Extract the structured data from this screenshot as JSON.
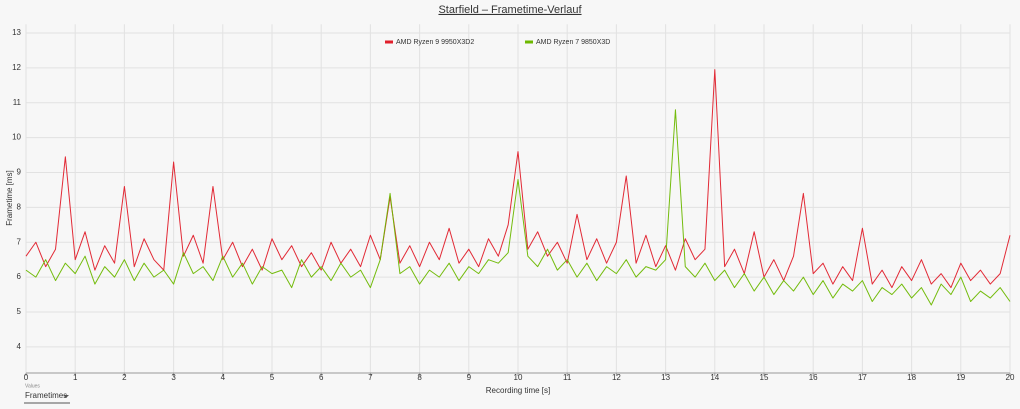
{
  "chart_data": {
    "type": "line",
    "title": "Starfield – Frametime-Verlauf",
    "x_label": "Recording time [s]",
    "y_label": "Frametime [ms]",
    "xlim": [
      0,
      20
    ],
    "xticks": [
      0,
      1,
      2,
      3,
      4,
      5,
      6,
      7,
      8,
      9,
      10,
      11,
      12,
      13,
      14,
      15,
      16,
      17,
      18,
      19,
      20
    ],
    "ylim": [
      3.25,
      13.25
    ],
    "yticks": [
      4,
      5,
      6,
      7,
      8,
      9,
      10,
      11,
      12,
      13
    ],
    "grid": true,
    "legend": "top",
    "x": [
      0,
      0.2,
      0.4,
      0.6,
      0.8,
      1,
      1.2,
      1.4,
      1.6,
      1.8,
      2,
      2.2,
      2.4,
      2.6,
      2.8,
      3,
      3.2,
      3.4,
      3.6,
      3.8,
      4,
      4.2,
      4.4,
      4.6,
      4.8,
      5,
      5.2,
      5.4,
      5.6,
      5.8,
      6,
      6.2,
      6.4,
      6.6,
      6.8,
      7,
      7.2,
      7.4,
      7.6,
      7.8,
      8,
      8.2,
      8.4,
      8.6,
      8.8,
      9,
      9.2,
      9.4,
      9.6,
      9.8,
      10,
      10.2,
      10.4,
      10.6,
      10.8,
      11,
      11.2,
      11.4,
      11.6,
      11.8,
      12,
      12.2,
      12.4,
      12.6,
      12.8,
      13,
      13.2,
      13.4,
      13.6,
      13.8,
      14,
      14.2,
      14.4,
      14.6,
      14.8,
      15,
      15.2,
      15.4,
      15.6,
      15.8,
      16,
      16.2,
      16.4,
      16.6,
      16.8,
      17,
      17.2,
      17.4,
      17.6,
      17.8,
      18,
      18.2,
      18.4,
      18.6,
      18.8,
      19,
      19.2,
      19.4,
      19.6,
      19.8,
      20
    ],
    "series": [
      {
        "name": "AMD Ryzen 9 9950X3D2",
        "color": "#e01f2b",
        "values": [
          6.6,
          7.0,
          6.3,
          6.8,
          9.45,
          6.5,
          7.3,
          6.2,
          6.9,
          6.4,
          8.6,
          6.3,
          7.1,
          6.5,
          6.2,
          9.3,
          6.6,
          7.2,
          6.4,
          8.6,
          6.5,
          7.0,
          6.3,
          6.8,
          6.2,
          7.1,
          6.5,
          6.9,
          6.3,
          6.7,
          6.2,
          7.0,
          6.4,
          6.8,
          6.3,
          7.2,
          6.5,
          8.3,
          6.4,
          6.9,
          6.3,
          7.0,
          6.5,
          7.4,
          6.4,
          6.8,
          6.3,
          7.1,
          6.6,
          7.5,
          9.6,
          6.8,
          7.3,
          6.6,
          7.0,
          6.4,
          7.8,
          6.5,
          7.1,
          6.4,
          7.0,
          8.9,
          6.4,
          7.2,
          6.3,
          6.9,
          6.2,
          7.1,
          6.5,
          6.8,
          11.95,
          6.3,
          6.8,
          6.1,
          7.3,
          6.0,
          6.5,
          5.9,
          6.6,
          8.4,
          6.1,
          6.4,
          5.8,
          6.3,
          5.9,
          7.4,
          5.8,
          6.2,
          5.7,
          6.3,
          5.9,
          6.5,
          5.8,
          6.1,
          5.7,
          6.4,
          5.9,
          6.2,
          5.8,
          6.1,
          7.2
        ]
      },
      {
        "name": "AMD Ryzen 7 9850X3D",
        "color": "#6db800",
        "values": [
          6.2,
          6.0,
          6.5,
          5.9,
          6.4,
          6.1,
          6.6,
          5.8,
          6.3,
          6.0,
          6.5,
          5.9,
          6.4,
          6.0,
          6.2,
          5.8,
          6.7,
          6.1,
          6.3,
          5.9,
          6.6,
          6.0,
          6.4,
          5.8,
          6.3,
          6.1,
          6.2,
          5.7,
          6.5,
          6.0,
          6.3,
          5.9,
          6.4,
          6.0,
          6.2,
          5.7,
          6.5,
          8.4,
          6.1,
          6.3,
          5.8,
          6.2,
          6.0,
          6.4,
          5.9,
          6.3,
          6.1,
          6.5,
          6.4,
          6.7,
          8.8,
          6.6,
          6.3,
          6.8,
          6.2,
          6.5,
          6.0,
          6.4,
          5.9,
          6.3,
          6.1,
          6.5,
          6.0,
          6.3,
          6.2,
          6.5,
          10.8,
          6.3,
          6.0,
          6.4,
          5.9,
          6.2,
          5.7,
          6.1,
          5.6,
          6.0,
          5.5,
          5.9,
          5.6,
          6.0,
          5.5,
          5.9,
          5.4,
          5.8,
          5.6,
          5.9,
          5.3,
          5.7,
          5.5,
          5.8,
          5.4,
          5.7,
          5.2,
          5.8,
          5.5,
          6.0,
          5.3,
          5.6,
          5.4,
          5.7,
          5.3
        ]
      }
    ]
  },
  "controls": {
    "label": "Values",
    "selected": "Frametimes"
  }
}
